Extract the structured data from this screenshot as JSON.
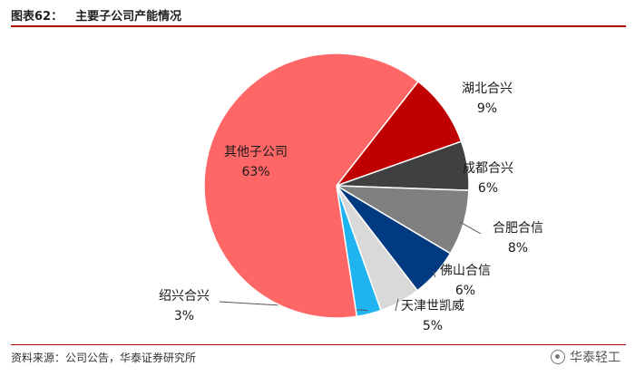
{
  "header": {
    "fig_no": "图表62：",
    "title": "主要子公司产能情况"
  },
  "footer": {
    "source": "资料来源：公司公告，华泰证券研究所",
    "brand": "华泰轻工"
  },
  "chart_data": {
    "type": "pie",
    "title": "主要子公司产能情况",
    "slices": [
      {
        "name": "湖北合兴",
        "label": "9%",
        "value": 9,
        "color": "#c00000"
      },
      {
        "name": "成都合兴",
        "label": "6%",
        "value": 6,
        "color": "#404040"
      },
      {
        "name": "合肥合信",
        "label": "8%",
        "value": 8,
        "color": "#808080"
      },
      {
        "name": "佛山合信",
        "label": "6%",
        "value": 6,
        "color": "#003a80"
      },
      {
        "name": "天津世凯威",
        "label": "5%",
        "value": 5,
        "color": "#d9d9d9"
      },
      {
        "name": "绍兴合兴",
        "label": "3%",
        "value": 3,
        "color": "#1fb3f0"
      },
      {
        "name": "其他子公司",
        "label": "63%",
        "value": 63,
        "color": "#ff6666"
      }
    ]
  }
}
